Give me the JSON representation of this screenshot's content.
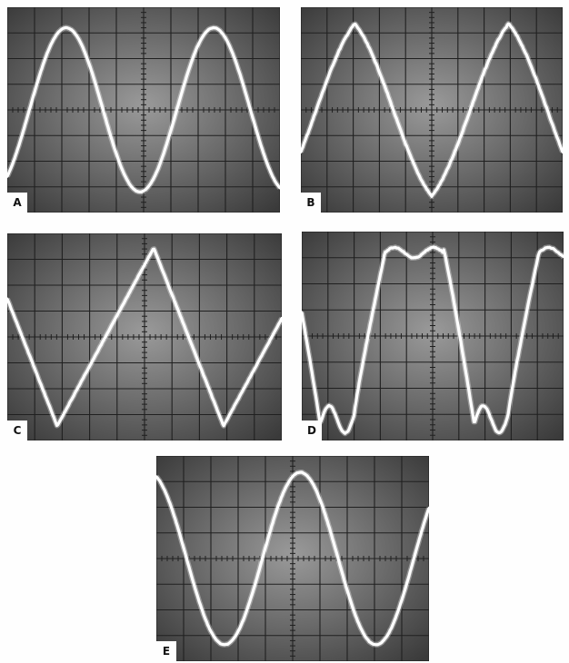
{
  "panels": [
    {
      "id": "a",
      "label": "A"
    },
    {
      "id": "b",
      "label": "B"
    },
    {
      "id": "c",
      "label": "C"
    },
    {
      "id": "d",
      "label": "D"
    },
    {
      "id": "e",
      "label": "E"
    }
  ],
  "colors": {
    "screen_center": "#9a9a9a",
    "screen_edge": "#3a3a3a",
    "grid": "#202020",
    "trace": "#ffffff",
    "page": "#fefefe"
  }
}
